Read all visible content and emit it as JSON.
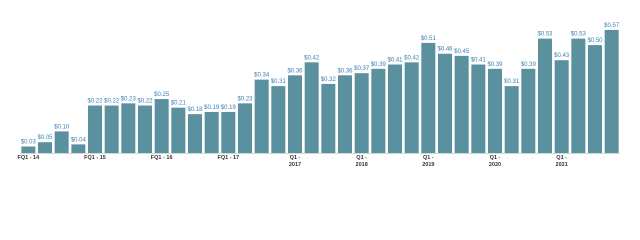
{
  "chart_data": {
    "type": "bar",
    "categories": [
      "FQ1 - 14",
      null,
      null,
      null,
      "FQ1 - 15",
      null,
      null,
      null,
      "FQ1 - 16",
      null,
      null,
      null,
      "FQ1 - 17",
      null,
      null,
      null,
      "Q1 - 2017",
      null,
      null,
      null,
      "Q1 - 2018",
      null,
      null,
      null,
      "Q1 - 2019",
      null,
      null,
      null,
      "Q1 - 2020",
      null,
      null,
      null,
      "Q1 - 2021",
      null,
      null,
      null
    ],
    "values": [
      0.03,
      0.05,
      0.1,
      0.04,
      0.22,
      0.22,
      0.23,
      0.22,
      0.25,
      0.21,
      0.18,
      0.19,
      0.19,
      0.23,
      0.34,
      0.31,
      0.36,
      0.42,
      0.32,
      0.36,
      0.37,
      0.39,
      0.41,
      0.42,
      0.51,
      0.46,
      0.45,
      0.41,
      0.39,
      0.31,
      0.39,
      0.53,
      0.43,
      0.53,
      0.5,
      0.57
    ],
    "value_labels": [
      "$0.03",
      "$0.05",
      "$0.10",
      "$0.04",
      "$0.22",
      "$0.22",
      "$0.23",
      "$0.22",
      "$0.25",
      "$0.21",
      "$0.18",
      "$0.19",
      "$0.19",
      "$0.23",
      "$0.34",
      "$0.31",
      "$0.36",
      "$0.42",
      "$0.32",
      "$0.36",
      "$0.37",
      "$0.39",
      "$0.41",
      "$0.42",
      "$0.51",
      "$0.46",
      "$0.45",
      "$0.41",
      "$0.39",
      "$0.31",
      "$0.39",
      "$0.53",
      "$0.43",
      "$0.53",
      "$0.50",
      "$0.57"
    ],
    "color": "#5b919e",
    "ylim": [
      0,
      0.6
    ]
  }
}
